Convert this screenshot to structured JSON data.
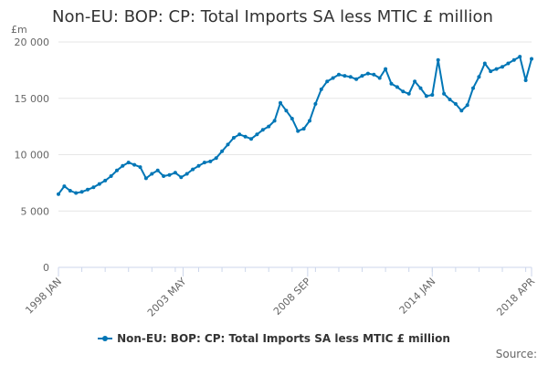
{
  "title": "Non-EU: BOP: CP: Total Imports SA less MTIC £ million",
  "source_label": "Source:",
  "chart_data": {
    "type": "line",
    "title": "Non-EU: BOP: CP: Total Imports SA less MTIC £ million",
    "xlabel": "",
    "ylabel": "£m",
    "ylim": [
      0,
      20000
    ],
    "yticks": [
      0,
      5000,
      10000,
      15000,
      20000
    ],
    "ytick_labels": [
      "0",
      "5 000",
      "10 000",
      "15 000",
      "20 000"
    ],
    "xrange": [
      "1998 JAN",
      "2018 APR"
    ],
    "xticks": [
      "1998 JAN",
      "2003 MAY",
      "2008 SEP",
      "2014 JAN",
      "2018 APR"
    ],
    "grid": true,
    "legend_position": "bottom-center",
    "color": "#0076b6",
    "series": [
      {
        "name": "Non-EU: BOP: CP: Total Imports SA less MTIC £ million",
        "x": [
          "1998 JAN",
          "1998 APR",
          "1998 JUL",
          "1998 OCT",
          "1999 JAN",
          "1999 APR",
          "1999 JUL",
          "1999 OCT",
          "2000 JAN",
          "2000 APR",
          "2000 JUL",
          "2000 OCT",
          "2001 JAN",
          "2001 APR",
          "2001 JUL",
          "2001 OCT",
          "2002 JAN",
          "2002 APR",
          "2002 JUL",
          "2002 OCT",
          "2003 JAN",
          "2003 APR",
          "2003 JUL",
          "2003 OCT",
          "2004 JAN",
          "2004 APR",
          "2004 JUL",
          "2004 OCT",
          "2005 JAN",
          "2005 APR",
          "2005 JUL",
          "2005 OCT",
          "2006 JAN",
          "2006 APR",
          "2006 JUL",
          "2006 OCT",
          "2007 JAN",
          "2007 APR",
          "2007 JUL",
          "2007 OCT",
          "2008 JAN",
          "2008 APR",
          "2008 JUL",
          "2008 OCT",
          "2009 JAN",
          "2009 APR",
          "2009 JUL",
          "2009 OCT",
          "2010 JAN",
          "2010 APR",
          "2010 JUL",
          "2010 OCT",
          "2011 JAN",
          "2011 APR",
          "2011 JUL",
          "2011 OCT",
          "2012 JAN",
          "2012 APR",
          "2012 JUL",
          "2012 OCT",
          "2013 JAN",
          "2013 APR",
          "2013 JUL",
          "2013 OCT",
          "2014 JAN",
          "2014 APR",
          "2014 JUL",
          "2014 OCT",
          "2015 JAN",
          "2015 APR",
          "2015 JUL",
          "2015 OCT",
          "2016 JAN",
          "2016 APR",
          "2016 JUL",
          "2016 OCT",
          "2017 JAN",
          "2017 APR",
          "2017 JUL",
          "2017 OCT",
          "2018 JAN",
          "2018 APR"
        ],
        "values": [
          6500,
          7200,
          6800,
          6600,
          6700,
          6900,
          7100,
          7400,
          7700,
          8100,
          8600,
          9000,
          9300,
          9100,
          8900,
          7900,
          8300,
          8600,
          8100,
          8200,
          8400,
          8000,
          8300,
          8700,
          9000,
          9300,
          9400,
          9700,
          10300,
          10900,
          11500,
          11800,
          11600,
          11400,
          11800,
          12200,
          12500,
          13000,
          14600,
          13900,
          13200,
          12100,
          12300,
          13000,
          14500,
          15800,
          16500,
          16800,
          17100,
          17000,
          16900,
          16700,
          17000,
          17200,
          17100,
          16800,
          17600,
          16300,
          16000,
          15600,
          15400,
          16500,
          15900,
          15200,
          15300,
          18400,
          15400,
          14900,
          14500,
          13900,
          14400,
          15900,
          16900,
          18100,
          17400,
          17600,
          17800,
          18100,
          18400,
          18700,
          16600,
          18500
        ]
      }
    ]
  }
}
